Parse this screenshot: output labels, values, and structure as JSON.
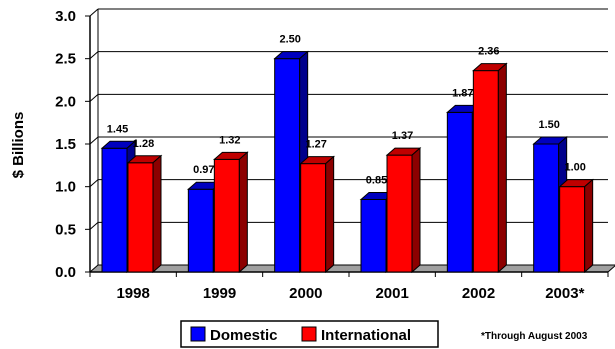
{
  "chart_data": {
    "type": "bar",
    "categories": [
      "1998",
      "1999",
      "2000",
      "2001",
      "2002",
      "2003*"
    ],
    "series": [
      {
        "name": "Domestic",
        "values": [
          1.45,
          0.97,
          2.5,
          0.85,
          1.87,
          1.5
        ],
        "labels": [
          "1.45",
          "0.97",
          "2.50",
          "0.85",
          "1.87",
          "1.50"
        ],
        "color": "#0000ff"
      },
      {
        "name": "International",
        "values": [
          1.28,
          1.32,
          1.27,
          1.37,
          2.36,
          1.0
        ],
        "labels": [
          "1.28",
          "1.32",
          "1.27",
          "1.37",
          "2.36",
          "1.00"
        ],
        "color": "#ff0000"
      }
    ],
    "ylabel": "$ Billions",
    "ylim": [
      0,
      3.0
    ],
    "yticks": [
      "0.0",
      "0.5",
      "1.0",
      "1.5",
      "2.0",
      "2.5",
      "3.0"
    ],
    "grid": true,
    "legend_position": "bottom",
    "footnote": "*Through August 2003"
  }
}
